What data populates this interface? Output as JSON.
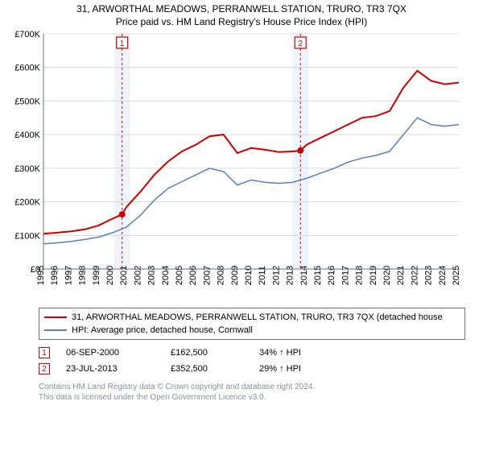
{
  "titles": {
    "line1": "31, ARWORTHAL MEADOWS, PERRANWELL STATION, TRURO, TR3 7QX",
    "line2": "Price paid vs. HM Land Registry's House Price Index (HPI)"
  },
  "chart": {
    "type": "line",
    "background_color": "#ffffff",
    "grid_line_color": "#c8c8c8",
    "axis_color": "#6a7280",
    "y": {
      "min": 0,
      "max": 700000,
      "step": 100000,
      "labels": [
        "£0",
        "£100K",
        "£200K",
        "£300K",
        "£400K",
        "£500K",
        "£600K",
        "£700K"
      ]
    },
    "x": {
      "min": 1995,
      "max": 2025,
      "step": 1,
      "labels": [
        "1995",
        "1996",
        "1997",
        "1998",
        "1999",
        "2000",
        "2001",
        "2002",
        "2003",
        "2004",
        "2005",
        "2006",
        "2007",
        "2008",
        "2009",
        "2010",
        "2011",
        "2012",
        "2013",
        "2014",
        "2015",
        "2016",
        "2017",
        "2018",
        "2019",
        "2020",
        "2021",
        "2022",
        "2023",
        "2024",
        "2025"
      ]
    },
    "vertical_bands": [
      {
        "x": 2000.68,
        "label": "1",
        "band_color": "#eef4fb",
        "line_color": "#cc0000",
        "line_dash": "3,3"
      },
      {
        "x": 2013.56,
        "label": "2",
        "band_color": "#eef4fb",
        "line_color": "#cc0000",
        "line_dash": "3,3"
      }
    ],
    "series": [
      {
        "name": "subject_property",
        "color": "#cc0000",
        "line_width": 2,
        "points": [
          [
            1995,
            105000
          ],
          [
            1996,
            108000
          ],
          [
            1997,
            112000
          ],
          [
            1998,
            118000
          ],
          [
            1999,
            130000
          ],
          [
            2000,
            150000
          ],
          [
            2000.68,
            162500
          ],
          [
            2001,
            185000
          ],
          [
            2002,
            230000
          ],
          [
            2003,
            280000
          ],
          [
            2004,
            320000
          ],
          [
            2005,
            350000
          ],
          [
            2006,
            370000
          ],
          [
            2007,
            395000
          ],
          [
            2008,
            400000
          ],
          [
            2009,
            345000
          ],
          [
            2010,
            360000
          ],
          [
            2011,
            355000
          ],
          [
            2012,
            348000
          ],
          [
            2013,
            350000
          ],
          [
            2013.56,
            352500
          ],
          [
            2014,
            370000
          ],
          [
            2015,
            390000
          ],
          [
            2016,
            410000
          ],
          [
            2017,
            430000
          ],
          [
            2018,
            450000
          ],
          [
            2019,
            455000
          ],
          [
            2020,
            470000
          ],
          [
            2021,
            540000
          ],
          [
            2022,
            590000
          ],
          [
            2023,
            560000
          ],
          [
            2024,
            550000
          ],
          [
            2025,
            555000
          ]
        ]
      },
      {
        "name": "hpi_cornwall",
        "color": "#5a7fb8",
        "line_width": 1.5,
        "points": [
          [
            1995,
            75000
          ],
          [
            1996,
            78000
          ],
          [
            1997,
            82000
          ],
          [
            1998,
            88000
          ],
          [
            1999,
            95000
          ],
          [
            2000,
            108000
          ],
          [
            2001,
            125000
          ],
          [
            2002,
            160000
          ],
          [
            2003,
            205000
          ],
          [
            2004,
            240000
          ],
          [
            2005,
            260000
          ],
          [
            2006,
            280000
          ],
          [
            2007,
            300000
          ],
          [
            2008,
            290000
          ],
          [
            2009,
            250000
          ],
          [
            2010,
            265000
          ],
          [
            2011,
            258000
          ],
          [
            2012,
            255000
          ],
          [
            2013,
            258000
          ],
          [
            2014,
            270000
          ],
          [
            2015,
            285000
          ],
          [
            2016,
            300000
          ],
          [
            2017,
            318000
          ],
          [
            2018,
            330000
          ],
          [
            2019,
            338000
          ],
          [
            2020,
            350000
          ],
          [
            2021,
            400000
          ],
          [
            2022,
            450000
          ],
          [
            2023,
            430000
          ],
          [
            2024,
            425000
          ],
          [
            2025,
            430000
          ]
        ]
      }
    ],
    "markers": [
      {
        "x": 2000.68,
        "y": 162500,
        "color": "#cc0000",
        "radius": 4
      },
      {
        "x": 2013.56,
        "y": 352500,
        "color": "#cc0000",
        "radius": 4
      }
    ]
  },
  "legend": {
    "items": [
      {
        "color": "#cc0000",
        "label": "31, ARWORTHAL MEADOWS, PERRANWELL STATION, TRURO, TR3 7QX (detached house"
      },
      {
        "color": "#5a7fb8",
        "label": "HPI: Average price, detached house, Cornwall"
      }
    ]
  },
  "events": [
    {
      "marker": "1",
      "date": "06-SEP-2000",
      "price": "£162,500",
      "delta": "34% ↑ HPI"
    },
    {
      "marker": "2",
      "date": "23-JUL-2013",
      "price": "£352,500",
      "delta": "29% ↑ HPI"
    }
  ],
  "footer": {
    "line1": "Contains HM Land Registry data © Crown copyright and database right 2024.",
    "line2": "This data is licensed under the Open Government Licence v3.0."
  },
  "fonts": {
    "title_size": 12,
    "axis_size": 11,
    "legend_size": 11,
    "footer_size": 10
  }
}
